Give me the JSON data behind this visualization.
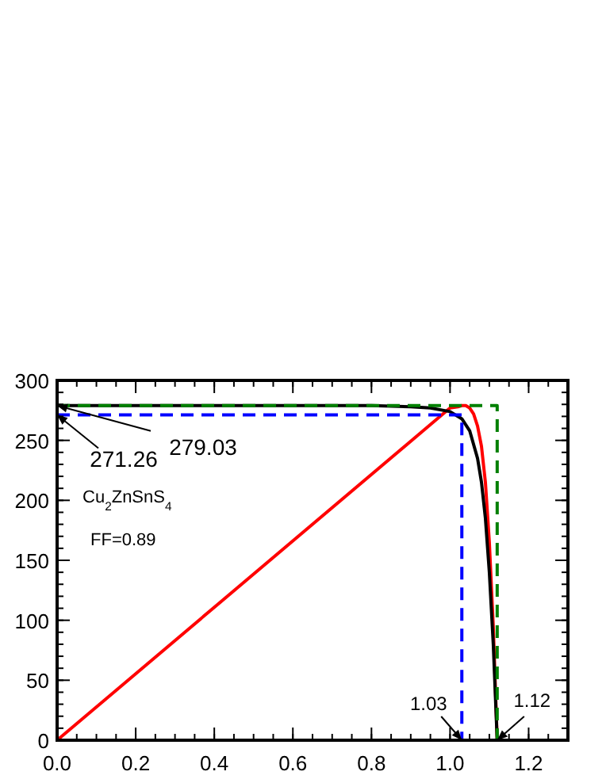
{
  "chart_data": {
    "type": "line",
    "xlim": [
      0,
      1.3
    ],
    "ylim": [
      0,
      300
    ],
    "xticks": [
      {
        "value": 0,
        "label": "0.0"
      },
      {
        "value": 0.2,
        "label": "0.2"
      },
      {
        "value": 0.4,
        "label": "0.4"
      },
      {
        "value": 0.6,
        "label": "0.6"
      },
      {
        "value": 0.8,
        "label": "0.8"
      },
      {
        "value": 1.0,
        "label": "1.0"
      },
      {
        "value": 1.2,
        "label": "1.2"
      }
    ],
    "yticks": [
      0,
      50,
      100,
      150,
      200,
      250,
      300
    ],
    "grid": false,
    "line_style": "solid",
    "marker": "none",
    "series": [
      {
        "color": "#ff0000",
        "x": [
          0,
          1.0,
          1.02,
          1.03,
          1.04,
          1.05,
          1.06,
          1.07,
          1.08,
          1.09,
          1.1,
          1.11,
          1.12
        ],
        "values": [
          0,
          277,
          278,
          279,
          279,
          277,
          272,
          262,
          245,
          215,
          165,
          95,
          0
        ]
      },
      {
        "color": "#000000",
        "x": [
          0,
          0.8,
          0.9,
          0.95,
          1.0,
          1.03,
          1.05,
          1.07,
          1.08,
          1.09,
          1.1,
          1.11,
          1.12
        ],
        "values": [
          279,
          279,
          278,
          277,
          274,
          268,
          258,
          235,
          215,
          185,
          140,
          80,
          0
        ]
      },
      {
        "color": "#0000ff",
        "line_style": "dashed",
        "x": [
          0,
          1.03,
          1.03
        ],
        "values": [
          271.26,
          271.26,
          0
        ]
      },
      {
        "color": "#008000",
        "line_style": "dashed",
        "x": [
          0,
          1.12,
          1.12
        ],
        "values": [
          279.03,
          279.03,
          0
        ]
      }
    ],
    "annotations": [
      {
        "text": "271.26",
        "x": 0,
        "y": 271.26
      },
      {
        "text": "279.03",
        "x": 0,
        "y": 279.03
      },
      {
        "text": "1.03",
        "x": 1.03,
        "y": 0
      },
      {
        "text": "1.12",
        "x": 1.12,
        "y": 0
      },
      "Cu$_{2}$ZnSnS$_{4}$",
      "FF=0.89"
    ]
  }
}
